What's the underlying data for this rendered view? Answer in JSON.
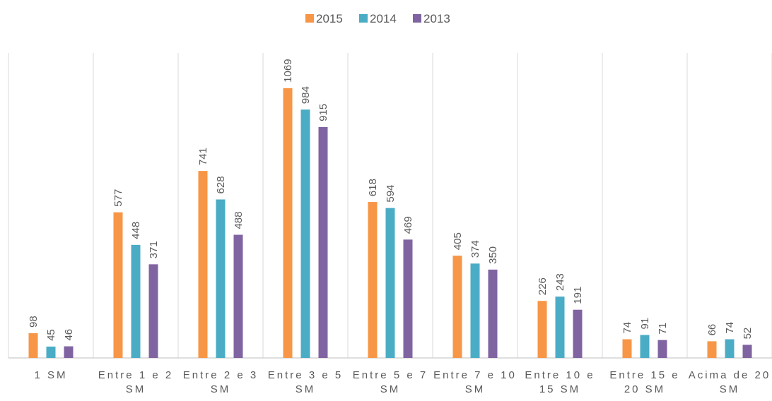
{
  "chart_data": {
    "type": "bar",
    "categories": [
      "1 SM",
      "Entre 1 e 2 SM",
      "Entre 2 e 3 SM",
      "Entre 3 e 5 SM",
      "Entre 5 e 7 SM",
      "Entre 7 e 10 SM",
      "Entre 10 e 15 SM",
      "Entre 15 e 20 SM",
      "Acima de 20 SM"
    ],
    "series": [
      {
        "name": "2015",
        "color": "#f79646",
        "values": [
          98,
          577,
          741,
          1069,
          618,
          405,
          226,
          74,
          66
        ]
      },
      {
        "name": "2014",
        "color": "#4bacc6",
        "values": [
          45,
          448,
          628,
          984,
          594,
          374,
          243,
          91,
          74
        ]
      },
      {
        "name": "2013",
        "color": "#8064a2",
        "values": [
          46,
          371,
          488,
          915,
          469,
          350,
          191,
          71,
          52
        ]
      }
    ],
    "ylim": [
      0,
      1200
    ],
    "legend": "top"
  }
}
